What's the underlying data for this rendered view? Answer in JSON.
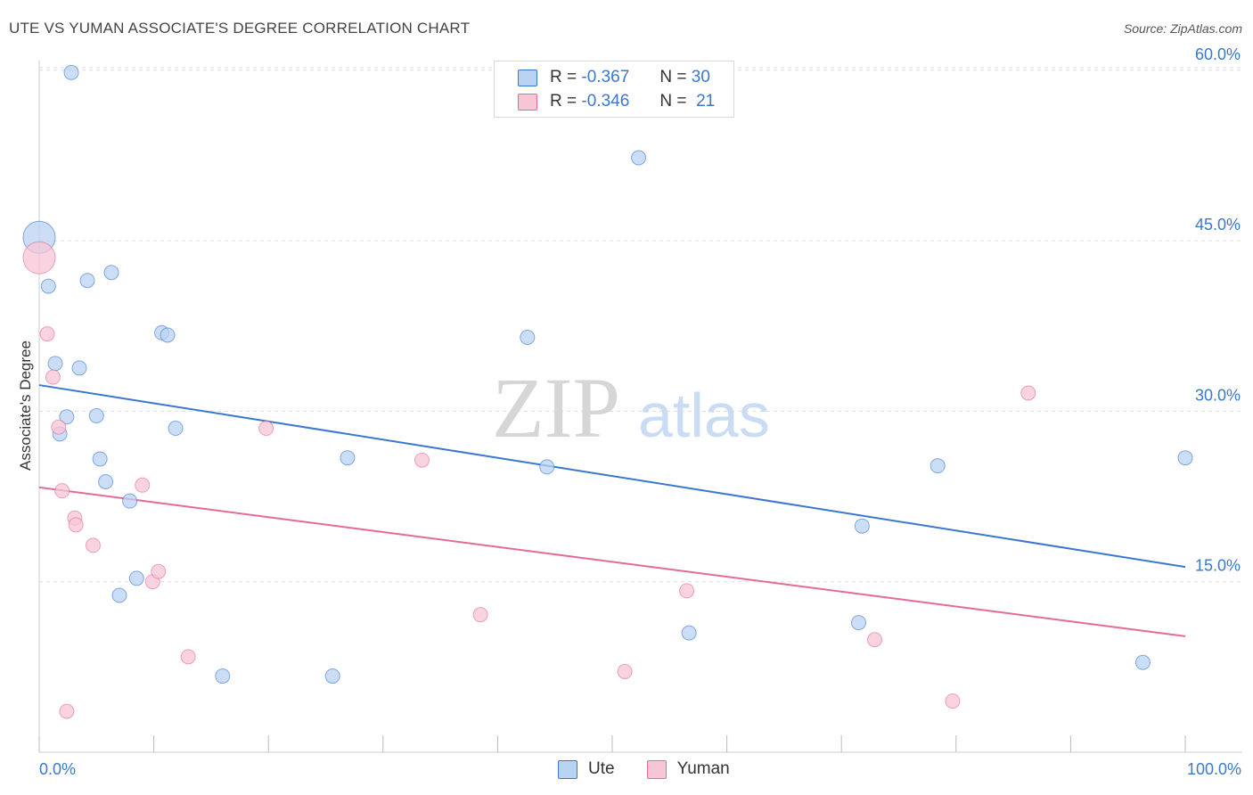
{
  "title": "UTE VS YUMAN ASSOCIATE'S DEGREE CORRELATION CHART",
  "source": "Source: ZipAtlas.com",
  "watermark": {
    "part1": "ZIP",
    "part2": "atlas"
  },
  "colors": {
    "ute": "#3a78d0",
    "ute_fill": "#b9d3f3",
    "yuman": "#e46b98",
    "yuman_fill": "#f7c6d6",
    "axis_text": "#3a78d0",
    "grid": "#dddddd"
  },
  "legend": {
    "ute": {
      "r_label": "R =",
      "r_value": "-0.367",
      "n_label": "N =",
      "n_value": "30"
    },
    "yuman": {
      "r_label": "R =",
      "r_value": "-0.346",
      "n_label": "N =",
      "n_value": "21"
    }
  },
  "bottom_legend": {
    "ute": "Ute",
    "yuman": "Yuman"
  },
  "chart_data": {
    "type": "scatter",
    "title": "UTE VS YUMAN ASSOCIATE'S DEGREE CORRELATION CHART",
    "xlabel": "",
    "ylabel": "Associate's Degree",
    "xlim": [
      0,
      100
    ],
    "ylim": [
      0,
      62
    ],
    "x_tick_labels": [
      "0.0%",
      "100.0%"
    ],
    "y_ticks": [
      15,
      30,
      45,
      60
    ],
    "y_tick_labels": [
      "15.0%",
      "30.0%",
      "45.0%",
      "60.0%"
    ],
    "grid": true,
    "legend_position": "top-center",
    "series": [
      {
        "name": "Ute",
        "points": [
          [
            0.0,
            45.3,
            "large"
          ],
          [
            2.8,
            59.8
          ],
          [
            0.8,
            41.0
          ],
          [
            4.2,
            41.5
          ],
          [
            6.3,
            42.2
          ],
          [
            1.4,
            34.2
          ],
          [
            3.5,
            33.8
          ],
          [
            10.7,
            36.9
          ],
          [
            11.2,
            36.7
          ],
          [
            2.4,
            29.5
          ],
          [
            1.8,
            28.0
          ],
          [
            5.0,
            29.6
          ],
          [
            11.9,
            28.5
          ],
          [
            5.3,
            25.8
          ],
          [
            5.8,
            23.8
          ],
          [
            7.9,
            22.1
          ],
          [
            8.5,
            15.3
          ],
          [
            7.0,
            13.8
          ],
          [
            16.0,
            6.7
          ],
          [
            25.6,
            6.7
          ],
          [
            26.9,
            25.9
          ],
          [
            42.6,
            36.5
          ],
          [
            44.3,
            25.1
          ],
          [
            52.3,
            52.3
          ],
          [
            56.7,
            10.5
          ],
          [
            71.5,
            11.4
          ],
          [
            71.8,
            19.9
          ],
          [
            78.4,
            25.2
          ],
          [
            96.3,
            7.9
          ],
          [
            100.0,
            25.9
          ]
        ],
        "trend": {
          "x": [
            0,
            100
          ],
          "y": [
            32.3,
            16.3
          ]
        }
      },
      {
        "name": "Yuman",
        "points": [
          [
            0.0,
            43.5,
            "large"
          ],
          [
            0.7,
            36.8
          ],
          [
            1.2,
            33.0
          ],
          [
            1.7,
            28.6
          ],
          [
            2.0,
            23.0
          ],
          [
            3.1,
            20.6
          ],
          [
            3.2,
            20.0
          ],
          [
            4.7,
            18.2
          ],
          [
            9.0,
            23.5
          ],
          [
            9.9,
            15.0
          ],
          [
            10.4,
            15.9
          ],
          [
            13.0,
            8.4
          ],
          [
            2.4,
            3.6
          ],
          [
            19.8,
            28.5
          ],
          [
            33.4,
            25.7
          ],
          [
            38.5,
            12.1
          ],
          [
            51.1,
            7.1
          ],
          [
            56.5,
            14.2
          ],
          [
            72.9,
            9.9
          ],
          [
            79.7,
            4.5
          ],
          [
            86.3,
            31.6
          ]
        ],
        "trend": {
          "x": [
            0,
            100
          ],
          "y": [
            23.3,
            10.2
          ]
        }
      }
    ]
  }
}
